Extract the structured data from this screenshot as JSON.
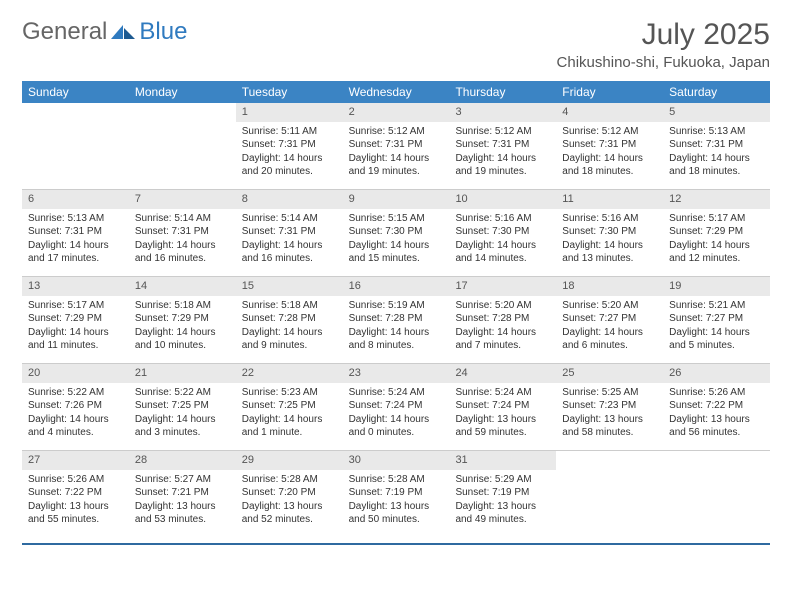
{
  "logo": {
    "word1": "General",
    "word2": "Blue"
  },
  "brand_color": "#2f7abf",
  "header_bg": "#3b84c4",
  "daynum_bg": "#e9e9e9",
  "rule_color": "#2f6aa0",
  "title": "July 2025",
  "location": "Chikushino-shi, Fukuoka, Japan",
  "weekdays": [
    "Sunday",
    "Monday",
    "Tuesday",
    "Wednesday",
    "Thursday",
    "Friday",
    "Saturday"
  ],
  "weeks": [
    [
      {
        "empty": true
      },
      {
        "empty": true
      },
      {
        "num": "1",
        "sunrise": "Sunrise: 5:11 AM",
        "sunset": "Sunset: 7:31 PM",
        "daylight": "Daylight: 14 hours and 20 minutes."
      },
      {
        "num": "2",
        "sunrise": "Sunrise: 5:12 AM",
        "sunset": "Sunset: 7:31 PM",
        "daylight": "Daylight: 14 hours and 19 minutes."
      },
      {
        "num": "3",
        "sunrise": "Sunrise: 5:12 AM",
        "sunset": "Sunset: 7:31 PM",
        "daylight": "Daylight: 14 hours and 19 minutes."
      },
      {
        "num": "4",
        "sunrise": "Sunrise: 5:12 AM",
        "sunset": "Sunset: 7:31 PM",
        "daylight": "Daylight: 14 hours and 18 minutes."
      },
      {
        "num": "5",
        "sunrise": "Sunrise: 5:13 AM",
        "sunset": "Sunset: 7:31 PM",
        "daylight": "Daylight: 14 hours and 18 minutes."
      }
    ],
    [
      {
        "num": "6",
        "sunrise": "Sunrise: 5:13 AM",
        "sunset": "Sunset: 7:31 PM",
        "daylight": "Daylight: 14 hours and 17 minutes."
      },
      {
        "num": "7",
        "sunrise": "Sunrise: 5:14 AM",
        "sunset": "Sunset: 7:31 PM",
        "daylight": "Daylight: 14 hours and 16 minutes."
      },
      {
        "num": "8",
        "sunrise": "Sunrise: 5:14 AM",
        "sunset": "Sunset: 7:31 PM",
        "daylight": "Daylight: 14 hours and 16 minutes."
      },
      {
        "num": "9",
        "sunrise": "Sunrise: 5:15 AM",
        "sunset": "Sunset: 7:30 PM",
        "daylight": "Daylight: 14 hours and 15 minutes."
      },
      {
        "num": "10",
        "sunrise": "Sunrise: 5:16 AM",
        "sunset": "Sunset: 7:30 PM",
        "daylight": "Daylight: 14 hours and 14 minutes."
      },
      {
        "num": "11",
        "sunrise": "Sunrise: 5:16 AM",
        "sunset": "Sunset: 7:30 PM",
        "daylight": "Daylight: 14 hours and 13 minutes."
      },
      {
        "num": "12",
        "sunrise": "Sunrise: 5:17 AM",
        "sunset": "Sunset: 7:29 PM",
        "daylight": "Daylight: 14 hours and 12 minutes."
      }
    ],
    [
      {
        "num": "13",
        "sunrise": "Sunrise: 5:17 AM",
        "sunset": "Sunset: 7:29 PM",
        "daylight": "Daylight: 14 hours and 11 minutes."
      },
      {
        "num": "14",
        "sunrise": "Sunrise: 5:18 AM",
        "sunset": "Sunset: 7:29 PM",
        "daylight": "Daylight: 14 hours and 10 minutes."
      },
      {
        "num": "15",
        "sunrise": "Sunrise: 5:18 AM",
        "sunset": "Sunset: 7:28 PM",
        "daylight": "Daylight: 14 hours and 9 minutes."
      },
      {
        "num": "16",
        "sunrise": "Sunrise: 5:19 AM",
        "sunset": "Sunset: 7:28 PM",
        "daylight": "Daylight: 14 hours and 8 minutes."
      },
      {
        "num": "17",
        "sunrise": "Sunrise: 5:20 AM",
        "sunset": "Sunset: 7:28 PM",
        "daylight": "Daylight: 14 hours and 7 minutes."
      },
      {
        "num": "18",
        "sunrise": "Sunrise: 5:20 AM",
        "sunset": "Sunset: 7:27 PM",
        "daylight": "Daylight: 14 hours and 6 minutes."
      },
      {
        "num": "19",
        "sunrise": "Sunrise: 5:21 AM",
        "sunset": "Sunset: 7:27 PM",
        "daylight": "Daylight: 14 hours and 5 minutes."
      }
    ],
    [
      {
        "num": "20",
        "sunrise": "Sunrise: 5:22 AM",
        "sunset": "Sunset: 7:26 PM",
        "daylight": "Daylight: 14 hours and 4 minutes."
      },
      {
        "num": "21",
        "sunrise": "Sunrise: 5:22 AM",
        "sunset": "Sunset: 7:25 PM",
        "daylight": "Daylight: 14 hours and 3 minutes."
      },
      {
        "num": "22",
        "sunrise": "Sunrise: 5:23 AM",
        "sunset": "Sunset: 7:25 PM",
        "daylight": "Daylight: 14 hours and 1 minute."
      },
      {
        "num": "23",
        "sunrise": "Sunrise: 5:24 AM",
        "sunset": "Sunset: 7:24 PM",
        "daylight": "Daylight: 14 hours and 0 minutes."
      },
      {
        "num": "24",
        "sunrise": "Sunrise: 5:24 AM",
        "sunset": "Sunset: 7:24 PM",
        "daylight": "Daylight: 13 hours and 59 minutes."
      },
      {
        "num": "25",
        "sunrise": "Sunrise: 5:25 AM",
        "sunset": "Sunset: 7:23 PM",
        "daylight": "Daylight: 13 hours and 58 minutes."
      },
      {
        "num": "26",
        "sunrise": "Sunrise: 5:26 AM",
        "sunset": "Sunset: 7:22 PM",
        "daylight": "Daylight: 13 hours and 56 minutes."
      }
    ],
    [
      {
        "num": "27",
        "sunrise": "Sunrise: 5:26 AM",
        "sunset": "Sunset: 7:22 PM",
        "daylight": "Daylight: 13 hours and 55 minutes."
      },
      {
        "num": "28",
        "sunrise": "Sunrise: 5:27 AM",
        "sunset": "Sunset: 7:21 PM",
        "daylight": "Daylight: 13 hours and 53 minutes."
      },
      {
        "num": "29",
        "sunrise": "Sunrise: 5:28 AM",
        "sunset": "Sunset: 7:20 PM",
        "daylight": "Daylight: 13 hours and 52 minutes."
      },
      {
        "num": "30",
        "sunrise": "Sunrise: 5:28 AM",
        "sunset": "Sunset: 7:19 PM",
        "daylight": "Daylight: 13 hours and 50 minutes."
      },
      {
        "num": "31",
        "sunrise": "Sunrise: 5:29 AM",
        "sunset": "Sunset: 7:19 PM",
        "daylight": "Daylight: 13 hours and 49 minutes."
      },
      {
        "empty": true
      },
      {
        "empty": true
      }
    ]
  ]
}
